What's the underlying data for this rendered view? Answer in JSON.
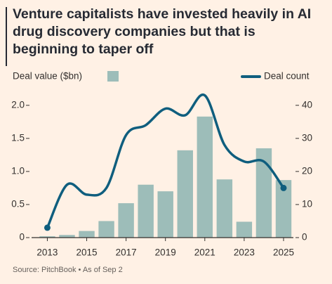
{
  "chart_data": {
    "type": "combo",
    "title": "Venture capitalists have invested heavily in AI drug discovery companies but that is beginning to taper off",
    "source": "Source: PitchBook • As of Sep 2",
    "x": [
      2013,
      2014,
      2015,
      2016,
      2017,
      2018,
      2019,
      2020,
      2021,
      2022,
      2023,
      2024,
      2025
    ],
    "xlim": [
      2012.2,
      2025.5
    ],
    "xticks": [
      2013,
      2015,
      2017,
      2019,
      2021,
      2023,
      2025
    ],
    "ylim": [
      0,
      2.2
    ],
    "yticks": [
      0,
      0.5,
      {
        "value": 1.0,
        "label": "1.0"
      },
      1.5,
      {
        "value": 2.0,
        "label": "2.0"
      }
    ],
    "y2lim": [
      0,
      44
    ],
    "y2ticks": [
      0,
      10,
      20,
      30,
      40
    ],
    "grid": false,
    "series": [
      {
        "name": "Deal value ($bn)",
        "type": "bar",
        "color": "#9dbdb9",
        "values": [
          0.02,
          0.04,
          0.1,
          0.25,
          0.52,
          0.8,
          0.7,
          1.32,
          1.83,
          0.88,
          0.24,
          1.35,
          0.87
        ]
      },
      {
        "name": "Deal count",
        "type": "line",
        "axis": "y2",
        "color": "#0f5e7e",
        "values": [
          3,
          16,
          13,
          15,
          31,
          34,
          39,
          37,
          43,
          28,
          23,
          23,
          15
        ]
      }
    ]
  }
}
